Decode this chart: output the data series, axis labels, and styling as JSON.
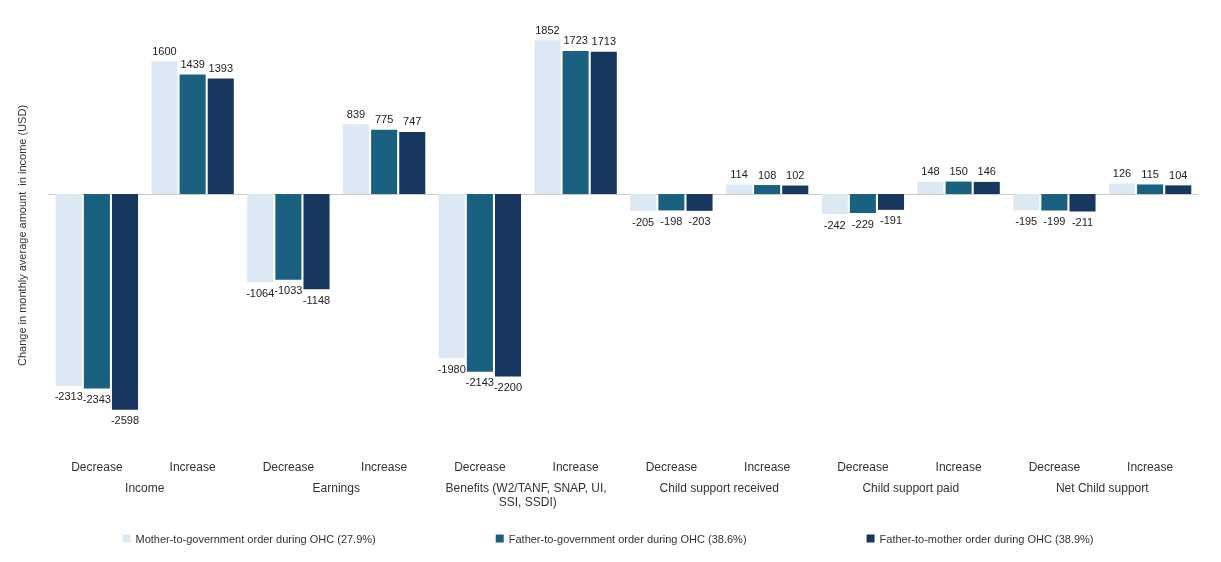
{
  "chart_data": {
    "type": "bar",
    "ylabel": "Change in monthly average amount  in income (USD)",
    "categories": [
      "Decrease",
      "Increase",
      "Decrease",
      "Increase",
      "Decrease",
      "Increase",
      "Decrease",
      "Increase",
      "Decrease",
      "Increase",
      "Decrease",
      "Increase"
    ],
    "annotations": [
      "Income",
      "Earnings",
      "Benefits (W2/TANF, SNAP, UI, SSI, SSDI)",
      "Child support received",
      "Child support paid",
      "Net Child support"
    ],
    "series": [
      {
        "name": "Mother-to-government order during OHC (27.9%)",
        "color": "#dce9f5",
        "values": [
          -2313,
          1600,
          -1064,
          839,
          -1980,
          1852,
          -205,
          114,
          -242,
          148,
          -195,
          126
        ]
      },
      {
        "name": "Father-to-government order during OHC (38.6%)",
        "color": "#1a6080",
        "values": [
          -2343,
          1439,
          -1033,
          775,
          -2143,
          1723,
          -198,
          108,
          -229,
          150,
          -199,
          115
        ]
      },
      {
        "name": "Father-to-mother order during OHC (38.9%)",
        "color": "#17375e",
        "values": [
          -2598,
          1393,
          -1148,
          747,
          -2200,
          1713,
          -203,
          102,
          -191,
          146,
          -211,
          104
        ]
      }
    ],
    "data_labels": true,
    "legend": "bottom",
    "grid": false
  }
}
